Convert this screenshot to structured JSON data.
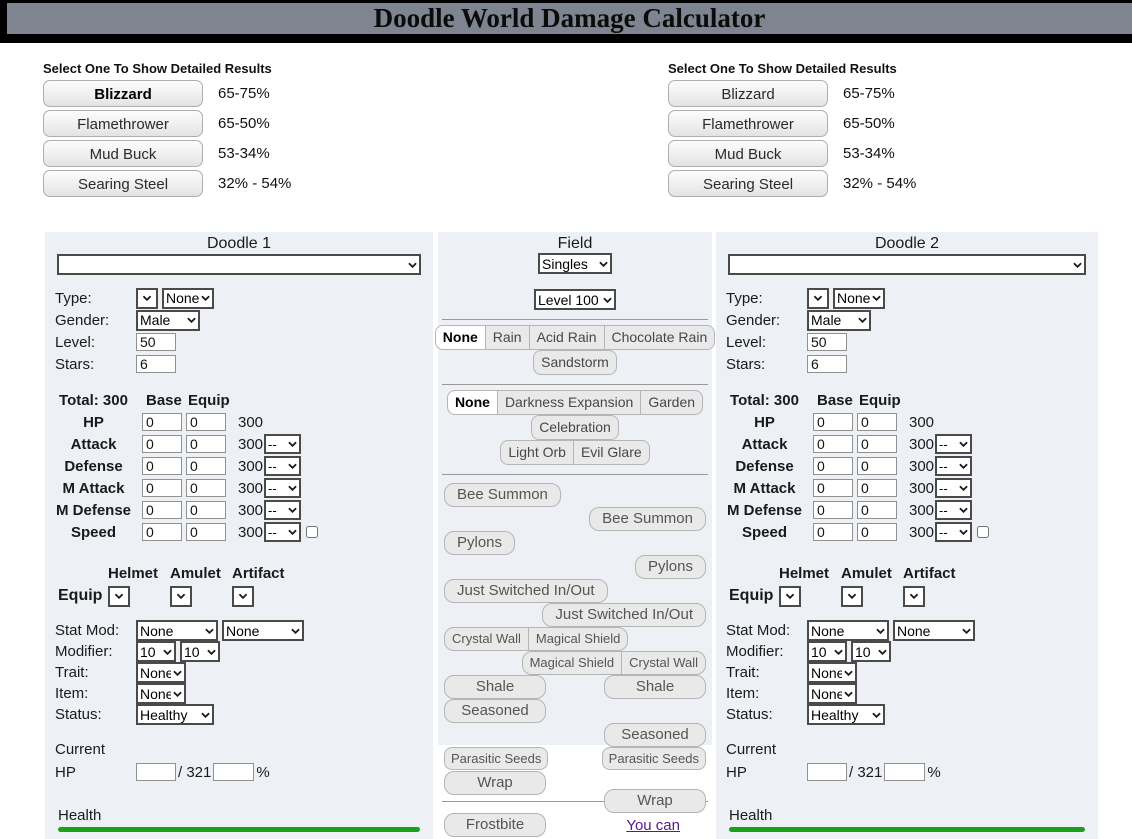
{
  "header": {
    "title": "Doodle World Damage Calculator"
  },
  "colors": {
    "header_bg": "#7e8490",
    "panel_bg": "#edf1f6",
    "health_green": "#1aa11a",
    "link_purple": "#551a8b"
  },
  "results": {
    "left": {
      "heading": "Select One To Show Detailed Results",
      "items": [
        {
          "label": "Blizzard",
          "value": "65-75%",
          "selected": true
        },
        {
          "label": "Flamethrower",
          "value": "65-50%",
          "selected": false
        },
        {
          "label": "Mud Buck",
          "value": "53-34%",
          "selected": false
        },
        {
          "label": "Searing Steel",
          "value": "32% - 54%",
          "selected": false
        }
      ]
    },
    "right": {
      "heading": "Select One To Show Detailed Results",
      "items": [
        {
          "label": "Blizzard",
          "value": "65-75%",
          "selected": false
        },
        {
          "label": "Flamethrower",
          "value": "65-50%",
          "selected": false
        },
        {
          "label": "Mud Buck",
          "value": "53-34%",
          "selected": false
        },
        {
          "label": "Searing Steel",
          "value": "32% - 54%",
          "selected": false
        }
      ]
    }
  },
  "doodle1": {
    "title": "Doodle 1",
    "doodle_select": "",
    "rows": [
      {
        "label": "Type:",
        "selects": [
          "",
          "None"
        ]
      },
      {
        "label": "Gender:",
        "selects": [
          "Male"
        ]
      },
      {
        "label": "Level:",
        "input": "50"
      },
      {
        "label": "Stars:",
        "input": "6"
      }
    ],
    "stats": {
      "headers": [
        "Total: 300",
        "Base",
        "Equip"
      ],
      "rows": [
        {
          "label": "HP",
          "base": "0",
          "equip": "0",
          "total": "300"
        },
        {
          "label": "Attack",
          "base": "0",
          "equip": "0",
          "total": "300",
          "stage": "--"
        },
        {
          "label": "Defense",
          "base": "0",
          "equip": "0",
          "total": "300",
          "stage": "--"
        },
        {
          "label": "M Attack",
          "base": "0",
          "equip": "0",
          "total": "300",
          "stage": "--"
        },
        {
          "label": "M Defense",
          "base": "0",
          "equip": "0",
          "total": "300",
          "stage": "--"
        },
        {
          "label": "Speed",
          "base": "0",
          "equip": "0",
          "total": "300",
          "stage": "--",
          "checkbox": false
        }
      ]
    },
    "equip": {
      "label": "Equip",
      "headers": [
        "Helmet",
        "Amulet",
        "Artifact"
      ],
      "selects": [
        "",
        "",
        ""
      ]
    },
    "mods": [
      {
        "label": "Stat Mod:",
        "selects": [
          "None",
          "None"
        ]
      },
      {
        "label": "Modifier:",
        "selects": [
          "10",
          "10"
        ]
      },
      {
        "label": "Trait:",
        "selects": [
          "None"
        ]
      },
      {
        "label": "Item:",
        "selects": [
          "None"
        ]
      },
      {
        "label": "Status:",
        "selects": [
          "Healthy"
        ]
      }
    ],
    "current": {
      "label": "Current",
      "hp_label": "HP",
      "hp": "",
      "max": "/ 321",
      "pct": "",
      "pct_sign": "%"
    },
    "health": {
      "label": "Health",
      "percent": 100
    }
  },
  "doodle2": {
    "title": "Doodle 2",
    "doodle_select": "",
    "rows": [
      {
        "label": "Type:",
        "selects": [
          "",
          "None"
        ]
      },
      {
        "label": "Gender:",
        "selects": [
          "Male"
        ]
      },
      {
        "label": "Level:",
        "input": "50"
      },
      {
        "label": "Stars:",
        "input": "6"
      }
    ],
    "stats": {
      "headers": [
        "Total: 300",
        "Base",
        "Equip"
      ],
      "rows": [
        {
          "label": "HP",
          "base": "0",
          "equip": "0",
          "total": "300"
        },
        {
          "label": "Attack",
          "base": "0",
          "equip": "0",
          "total": "300",
          "stage": "--"
        },
        {
          "label": "Defense",
          "base": "0",
          "equip": "0",
          "total": "300",
          "stage": "--"
        },
        {
          "label": "M Attack",
          "base": "0",
          "equip": "0",
          "total": "300",
          "stage": "--"
        },
        {
          "label": "M Defense",
          "base": "0",
          "equip": "0",
          "total": "300",
          "stage": "--"
        },
        {
          "label": "Speed",
          "base": "0",
          "equip": "0",
          "total": "300",
          "stage": "--",
          "checkbox": false
        }
      ]
    },
    "equip": {
      "label": "Equip",
      "headers": [
        "Helmet",
        "Amulet",
        "Artifact"
      ],
      "selects": [
        "",
        "",
        ""
      ]
    },
    "mods": [
      {
        "label": "Stat Mod:",
        "selects": [
          "None",
          "None"
        ]
      },
      {
        "label": "Modifier:",
        "selects": [
          "10",
          "10"
        ]
      },
      {
        "label": "Trait:",
        "selects": [
          "None"
        ]
      },
      {
        "label": "Item:",
        "selects": [
          "None"
        ]
      },
      {
        "label": "Status:",
        "selects": [
          "Healthy"
        ]
      }
    ],
    "current": {
      "label": "Current",
      "hp_label": "HP",
      "hp": "",
      "max": "/ 321",
      "pct": "",
      "pct_sign": "%"
    },
    "health": {
      "label": "Health",
      "percent": 100
    }
  },
  "field": {
    "title": "Field",
    "mode_select": "Singles",
    "level_select": "Level 100",
    "weather": [
      [
        {
          "t": "None",
          "sel": true
        },
        {
          "t": "Rain",
          "sel": false
        },
        {
          "t": "Acid Rain",
          "sel": false
        },
        {
          "t": "Chocolate Rain",
          "sel": false
        }
      ],
      [
        {
          "t": "Sandstorm",
          "sel": false
        }
      ]
    ],
    "terrain": [
      [
        {
          "t": "None",
          "sel": true
        },
        {
          "t": "Darkness Expansion",
          "sel": false
        },
        {
          "t": "Garden",
          "sel": false
        }
      ],
      [
        {
          "t": "Celebration",
          "sel": false
        }
      ],
      [
        {
          "t": "Light Orb",
          "sel": false
        },
        {
          "t": "Evil Glare",
          "sel": false
        }
      ]
    ],
    "toggle_rows": [
      {
        "items": [
          {
            "label": "Bee Summon",
            "align": "left"
          }
        ]
      },
      {
        "items": [
          {
            "label": "Bee Summon",
            "align": "right"
          }
        ]
      },
      {
        "items": [
          {
            "label": "Pylons",
            "align": "left"
          }
        ]
      },
      {
        "items": [
          {
            "label": "Pylons",
            "align": "right"
          }
        ]
      },
      {
        "items": [
          {
            "label": "Just Switched In/Out",
            "align": "left"
          }
        ]
      },
      {
        "items": [
          {
            "label": "Just Switched In/Out",
            "align": "right"
          }
        ]
      },
      {
        "items": [
          {
            "pair": [
              "Crystal Wall",
              "Magical Shield"
            ],
            "align": "left"
          }
        ]
      },
      {
        "items": [
          {
            "pair": [
              "Magical Shield",
              "Crystal Wall"
            ],
            "align": "right"
          }
        ]
      },
      {
        "items": [
          {
            "label": "Shale",
            "align": "left",
            "wide": true
          },
          {
            "label": "Shale",
            "align": "right",
            "wide": true
          }
        ]
      },
      {
        "items": [
          {
            "label": "Seasoned",
            "align": "left",
            "wide": true
          }
        ]
      },
      {
        "items": [
          {
            "label": "Seasoned",
            "align": "right",
            "wide": true
          }
        ]
      },
      {
        "items": [
          {
            "label": "Parasitic Seeds",
            "align": "left",
            "compact": true
          },
          {
            "label": "Parasitic Seeds",
            "align": "right",
            "compact": true
          }
        ]
      },
      {
        "items": [
          {
            "label": "Wrap",
            "align": "left",
            "wide": true
          }
        ]
      },
      {
        "hr": true
      },
      {
        "items": [
          {
            "label": "Wrap",
            "align": "right",
            "wide": true
          }
        ],
        "overlap": true
      },
      {
        "items": [
          {
            "label": "Frostbite",
            "align": "left",
            "wide": true
          },
          {
            "link": "You can",
            "align": "right"
          }
        ]
      }
    ]
  }
}
